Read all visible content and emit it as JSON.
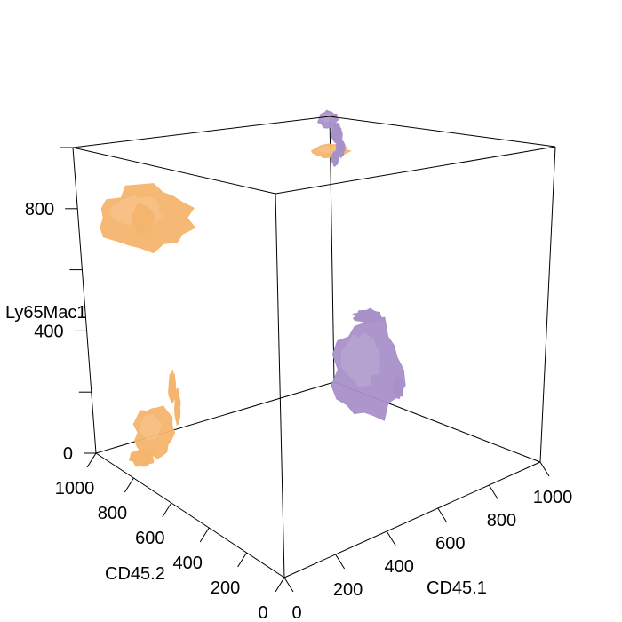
{
  "chart_data": {
    "type": "3d-isosurface",
    "axes": {
      "x": {
        "label": "CD45.1",
        "ticks": [
          0,
          200,
          400,
          600,
          800,
          1000
        ]
      },
      "y": {
        "label": "CD45.2",
        "ticks": [
          0,
          200,
          400,
          600,
          800,
          1000
        ]
      },
      "z": {
        "label": "Ly65Mac1",
        "ticks": [
          0,
          200,
          400,
          600,
          800,
          1000
        ],
        "tick_labels": [
          "0",
          "",
          "400",
          "",
          "800",
          ""
        ]
      }
    },
    "xlim": [
      0,
      1000
    ],
    "ylim": [
      0,
      1000
    ],
    "zlim": [
      0,
      1000
    ],
    "series": [
      {
        "color": "#f5b56e",
        "clusters": [
          {
            "center": [
              150,
              850,
              780
            ]
          },
          {
            "center": [
              80,
              780,
              130
            ]
          },
          {
            "center": [
              900,
              880,
              900
            ]
          }
        ]
      },
      {
        "color": "#a890c8",
        "clusters": [
          {
            "center": [
              820,
              620,
              200
            ]
          },
          {
            "center": [
              950,
              950,
              1000
            ]
          }
        ]
      }
    ],
    "box": true,
    "grid": false
  }
}
